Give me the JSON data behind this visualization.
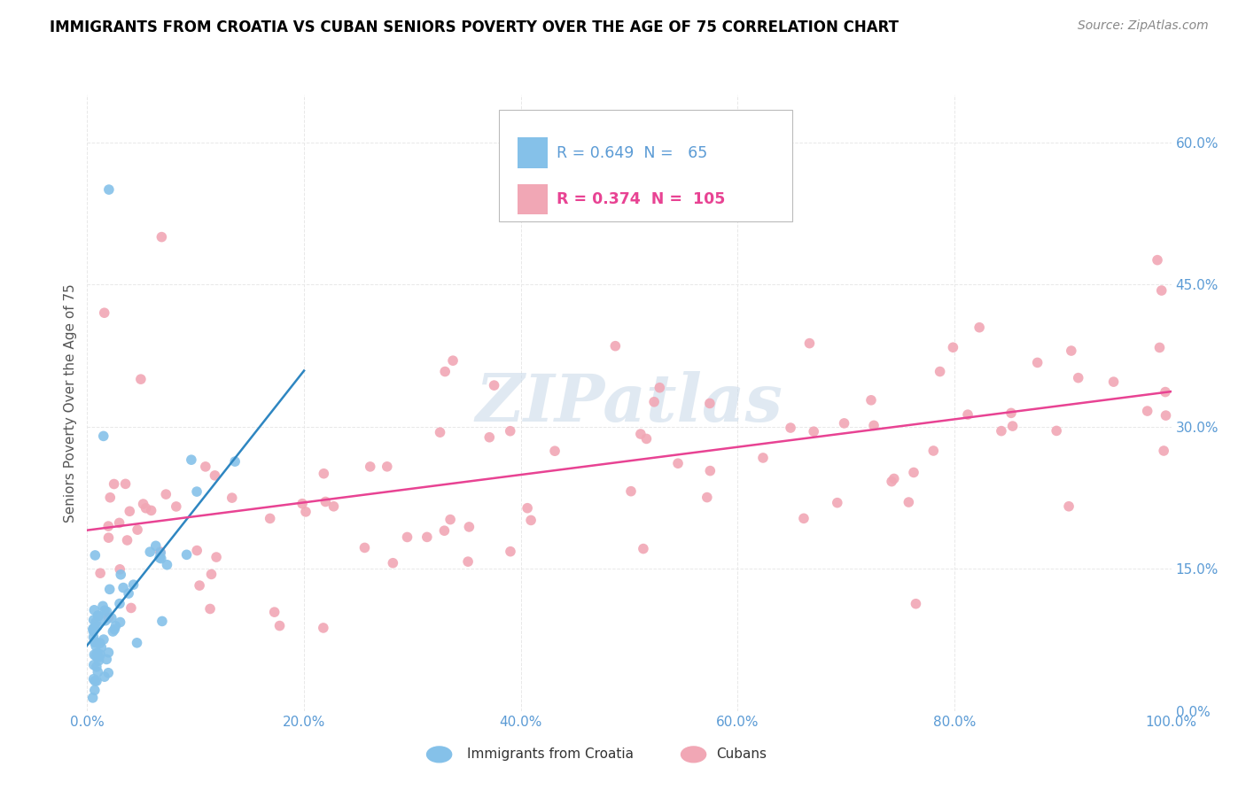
{
  "title": "IMMIGRANTS FROM CROATIA VS CUBAN SENIORS POVERTY OVER THE AGE OF 75 CORRELATION CHART",
  "source": "Source: ZipAtlas.com",
  "ylabel": "Seniors Poverty Over the Age of 75",
  "croatia_R": 0.649,
  "croatia_N": 65,
  "cuban_R": 0.374,
  "cuban_N": 105,
  "croatia_color": "#85C1E9",
  "cuban_color": "#F1A7B5",
  "croatia_line_color": "#2E86C1",
  "cuban_line_color": "#E84393",
  "legend_label_croatia": "Immigrants from Croatia",
  "legend_label_cuban": "Cubans",
  "watermark": "ZIPatlas",
  "tick_label_color": "#5B9BD5",
  "axis_label_color": "#555555",
  "grid_color": "#E8E8E8",
  "title_fontsize": 12,
  "source_fontsize": 10,
  "tick_fontsize": 11,
  "ylabel_fontsize": 11
}
